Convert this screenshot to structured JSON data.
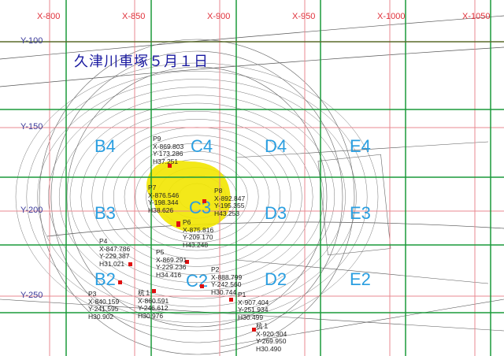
{
  "title": "久津川車塚５月１日",
  "x_labels": [
    "X-800",
    "X-850",
    "X-900",
    "X-950",
    "X-1000",
    "X-1050"
  ],
  "y_labels": [
    "Y-100",
    "Y-150",
    "Y-200",
    "Y-250"
  ],
  "cells": [
    "B4",
    "C4",
    "D4",
    "E4",
    "B3",
    "C3",
    "D3",
    "E3",
    "B2",
    "C2",
    "D2",
    "E2"
  ],
  "colors": {
    "grid_red": "#e88a90",
    "grid_green": "#1a9a3a",
    "highlight": "#f2e600",
    "marker": "#e01010",
    "cell_label": "#2a9ee0"
  },
  "points": [
    {
      "name": "P9",
      "x": "X-869.803",
      "y": "Y-173.286",
      "h": "H37.251"
    },
    {
      "name": "P7",
      "x": "X-876.546",
      "y": "Y-198.344",
      "h": "H38.626"
    },
    {
      "name": "P8",
      "x": "X-892.847",
      "y": "Y-195.355",
      "h": "H43.253"
    },
    {
      "name": "P6",
      "x": "X-875.816",
      "y": "Y-209.170",
      "h": "H43.248"
    },
    {
      "name": "P5",
      "x": "X-869.291",
      "y": "Y-229.236",
      "h": "H34.416"
    },
    {
      "name": "P4",
      "x": "X-847.786",
      "y": "Y-229.387",
      "h": "H31.021"
    },
    {
      "name": "P3",
      "x": "X-840.159",
      "y": "Y-241.595",
      "h": "H30.902"
    },
    {
      "name": "杭１",
      "x": "X-860.591",
      "y": "Y-246.612",
      "h": "H30.976"
    },
    {
      "name": "P2",
      "x": "X-888.799",
      "y": "Y-242.560",
      "h": "H30.744"
    },
    {
      "name": "P1",
      "x": "X-907.404",
      "y": "Y-251.934",
      "h": "H30.499"
    },
    {
      "name": "杭１",
      "x": "X-920.304",
      "y": "Y-269.950",
      "h": "H30.490"
    }
  ]
}
